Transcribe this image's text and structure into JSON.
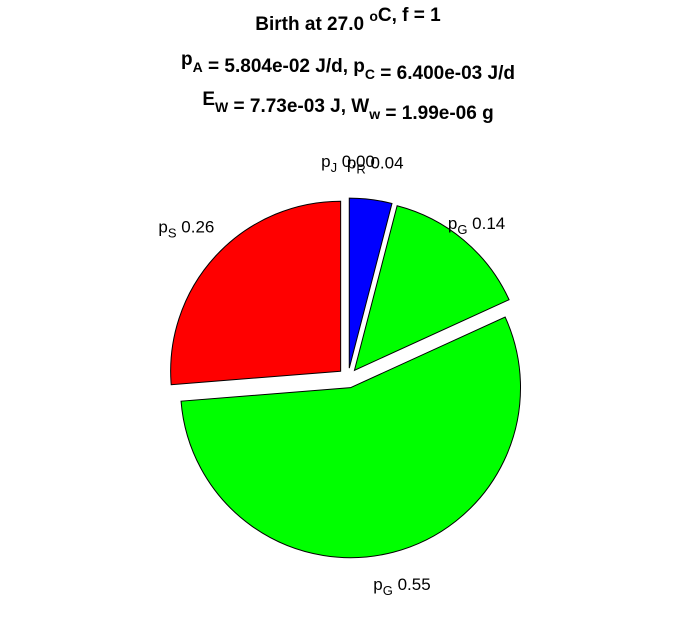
{
  "chart_data": {
    "type": "pie",
    "title_lines": [
      {
        "parts": [
          {
            "t": "Birth at 27.0 "
          },
          {
            "t": "o",
            "sup": true
          },
          {
            "t": "C, f = 1"
          }
        ]
      },
      {
        "parts": [
          {
            "t": "p"
          },
          {
            "t": "A",
            "sub": true
          },
          {
            "t": " = 5.804e-02 J/d, p"
          },
          {
            "t": "C",
            "sub": true
          },
          {
            "t": " = 6.400e-03 J/d"
          }
        ]
      },
      {
        "parts": [
          {
            "t": "E"
          },
          {
            "t": "W",
            "sub": true
          },
          {
            "t": " = 7.73e-03 J, W"
          },
          {
            "t": "w",
            "sub": true
          },
          {
            "t": " = 1.99e-06 g"
          }
        ]
      }
    ],
    "slices": [
      {
        "symbol": "p",
        "sub": "R",
        "value": 0.04,
        "label": "0.04",
        "color": "#0000ff"
      },
      {
        "symbol": "p",
        "sub": "G",
        "value": 0.14,
        "label": "0.14",
        "color": "#00ff00"
      },
      {
        "symbol": "p",
        "sub": "G",
        "value": 0.55,
        "label": "0.55",
        "color": "#00ff00"
      },
      {
        "symbol": "p",
        "sub": "S",
        "value": 0.26,
        "label": "0.26",
        "color": "#ff0000"
      },
      {
        "symbol": "p",
        "sub": "J",
        "value": 0.0,
        "label": "0.00",
        "color": "#ffff00"
      }
    ],
    "start": "top",
    "direction": "clockwise",
    "exploded": true,
    "edge_color": "#000000"
  }
}
